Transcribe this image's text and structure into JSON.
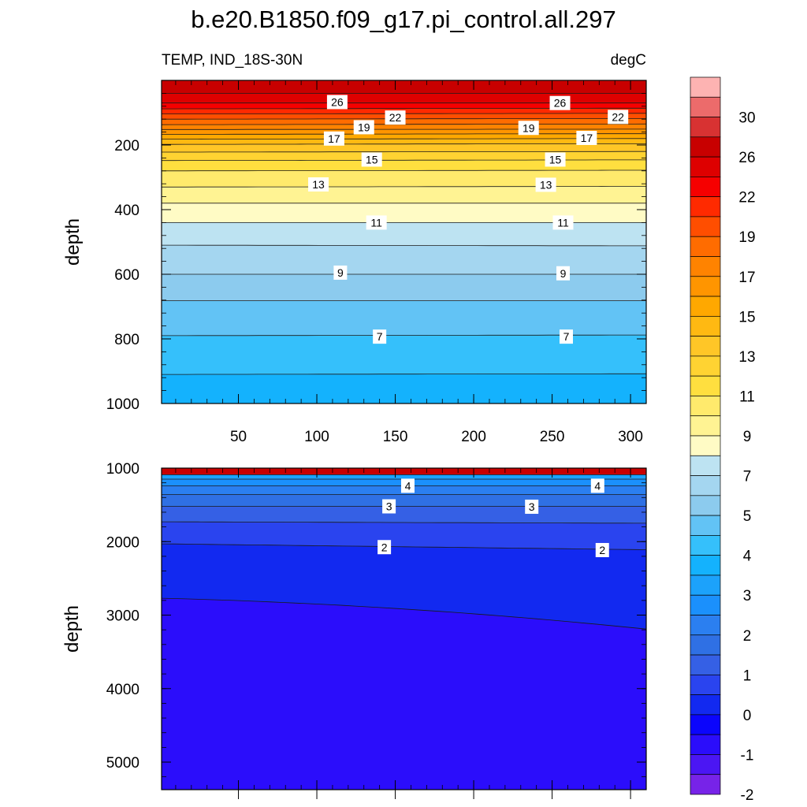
{
  "chart_data": {
    "type": "contour",
    "title": "b.e20.B1850.f09_g17.pi_control.all.297",
    "subtitle_left": "TEMP, IND_18S-30N",
    "subtitle_right": "degC",
    "x_ticks": [
      "50",
      "100",
      "150",
      "200",
      "250",
      "300"
    ],
    "x_tick_values": [
      50,
      100,
      150,
      200,
      250,
      300
    ],
    "xlim": [
      1,
      310
    ],
    "panels": [
      {
        "name": "upper",
        "ylabel": "depth",
        "ylim": [
          0,
          1000
        ],
        "y_ticks": [
          "200",
          "400",
          "600",
          "800",
          "1000"
        ],
        "y_tick_values": [
          200,
          400,
          600,
          800,
          1000
        ],
        "contours": [
          {
            "level": 26,
            "depth_left": 40,
            "depth_right": 40
          },
          {
            "level": 25,
            "depth_left": 70,
            "depth_right": 70
          },
          {
            "level": 24,
            "depth_left": 88,
            "depth_right": 86
          },
          {
            "level": 23,
            "depth_left": 104,
            "depth_right": 102
          },
          {
            "level": 22,
            "depth_left": 120,
            "depth_right": 118
          },
          {
            "level": 21,
            "depth_left": 137,
            "depth_right": 135
          },
          {
            "level": 20,
            "depth_left": 152,
            "depth_right": 151
          },
          {
            "level": 19,
            "depth_left": 167,
            "depth_right": 165
          },
          {
            "level": 18,
            "depth_left": 182,
            "depth_right": 180
          },
          {
            "level": 17,
            "depth_left": 198,
            "depth_right": 196
          },
          {
            "level": 16,
            "depth_left": 222,
            "depth_right": 220
          },
          {
            "level": 15,
            "depth_left": 248,
            "depth_right": 246
          },
          {
            "level": 14,
            "depth_left": 280,
            "depth_right": 278
          },
          {
            "level": 13,
            "depth_left": 330,
            "depth_right": 328
          },
          {
            "level": 12,
            "depth_left": 380,
            "depth_right": 380
          },
          {
            "level": 11,
            "depth_left": 440,
            "depth_right": 440
          },
          {
            "level": 10,
            "depth_left": 510,
            "depth_right": 512
          },
          {
            "level": 9,
            "depth_left": 600,
            "depth_right": 600
          },
          {
            "level": 8,
            "depth_left": 682,
            "depth_right": 682
          },
          {
            "level": 7,
            "depth_left": 790,
            "depth_right": 788
          },
          {
            "level": 6,
            "depth_left": 910,
            "depth_right": 908
          }
        ],
        "labels": [
          {
            "text": "26",
            "x": 113,
            "depth": 67
          },
          {
            "text": "26",
            "x": 255,
            "depth": 70
          },
          {
            "text": "22",
            "x": 150,
            "depth": 115
          },
          {
            "text": "22",
            "x": 292,
            "depth": 113
          },
          {
            "text": "19",
            "x": 130,
            "depth": 145
          },
          {
            "text": "19",
            "x": 235,
            "depth": 147
          },
          {
            "text": "17",
            "x": 111,
            "depth": 180
          },
          {
            "text": "17",
            "x": 272,
            "depth": 178
          },
          {
            "text": "15",
            "x": 135,
            "depth": 245
          },
          {
            "text": "15",
            "x": 252,
            "depth": 245
          },
          {
            "text": "13",
            "x": 101,
            "depth": 322
          },
          {
            "text": "13",
            "x": 246,
            "depth": 323
          },
          {
            "text": "11",
            "x": 138,
            "depth": 440
          },
          {
            "text": "11",
            "x": 257,
            "depth": 440
          },
          {
            "text": "9",
            "x": 115,
            "depth": 595
          },
          {
            "text": "9",
            "x": 257,
            "depth": 597
          },
          {
            "text": "7",
            "x": 140,
            "depth": 793
          },
          {
            "text": "7",
            "x": 259,
            "depth": 793
          }
        ]
      },
      {
        "name": "lower",
        "ylabel": "depth",
        "ylim": [
          1000,
          5375
        ],
        "y_ticks": [
          "1000",
          "2000",
          "3000",
          "4000",
          "5000"
        ],
        "y_tick_values": [
          1000,
          2000,
          3000,
          4000,
          5000
        ],
        "contours": [
          {
            "level": 5,
            "depth_left": 1090,
            "depth_right": 1090
          },
          {
            "level": 4.5,
            "depth_left": 1150,
            "depth_right": 1150
          },
          {
            "level": 4,
            "depth_left": 1240,
            "depth_right": 1240
          },
          {
            "level": 3.5,
            "depth_left": 1360,
            "depth_right": 1360
          },
          {
            "level": 3,
            "depth_left": 1520,
            "depth_right": 1520
          },
          {
            "level": 2.5,
            "depth_left": 1730,
            "depth_right": 1750
          },
          {
            "level": 2,
            "depth_left": 2030,
            "depth_right": 2110
          },
          {
            "level": 1,
            "depth_left": 2770,
            "depth_right": 3190
          }
        ],
        "labels": [
          {
            "text": "4",
            "x": 158,
            "depth": 1240
          },
          {
            "text": "4",
            "x": 279,
            "depth": 1240
          },
          {
            "text": "3",
            "x": 146,
            "depth": 1520
          },
          {
            "text": "3",
            "x": 237,
            "depth": 1525
          },
          {
            "text": "2",
            "x": 143,
            "depth": 2075
          },
          {
            "text": "2",
            "x": 282,
            "depth": 2115
          }
        ]
      }
    ],
    "colorbar": {
      "label_values": [
        "30",
        "26",
        "22",
        "19",
        "17",
        "15",
        "13",
        "11",
        "9",
        "7",
        "5",
        "4",
        "3",
        "2",
        "1",
        "0",
        "-1",
        "-2"
      ],
      "colors_top_to_bottom": [
        "#fdb3b2",
        "#ec6b6b",
        "#d83232",
        "#c80000",
        "#de0000",
        "#f60000",
        "#ff2a00",
        "#ff4e00",
        "#ff6c00",
        "#ff8300",
        "#ff9500",
        "#ffa800",
        "#ffb912",
        "#ffc627",
        "#ffd332",
        "#ffdf3f",
        "#ffea6c",
        "#fff393",
        "#fffbc5",
        "#bde3f2",
        "#a4d6f0",
        "#8ccbee",
        "#62c3f5",
        "#35c0fb",
        "#14b2fd",
        "#1ca2fb",
        "#1b90fc",
        "#2b7ff0",
        "#2f70e4",
        "#3560e5",
        "#2a44ef",
        "#1229f0",
        "#0b05fc",
        "#2b0dfb",
        "#4b16f3",
        "#7723e8"
      ]
    }
  }
}
